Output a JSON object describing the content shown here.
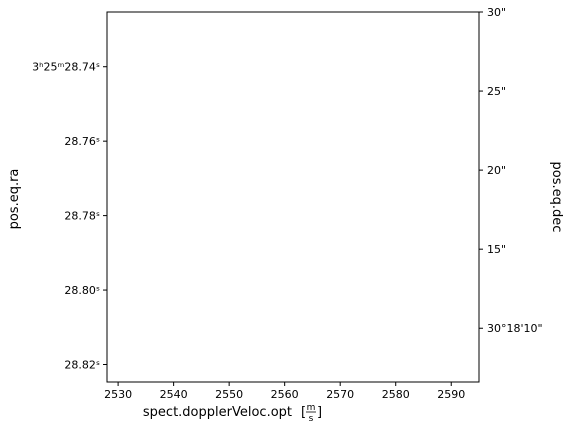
{
  "chart_data": {
    "type": "scatter",
    "title": "",
    "xlabel": "spect.dopplerVeloc.opt",
    "xlabel_unit_num": "m",
    "xlabel_unit_den": "s",
    "ylabel_left": "pos.eq.ra",
    "ylabel_right": "pos.eq.dec",
    "xlim": [
      2528,
      2595
    ],
    "x_ticks": [
      2530,
      2540,
      2550,
      2560,
      2570,
      2580,
      2590
    ],
    "x_tick_labels": [
      "2530",
      "2540",
      "2550",
      "2560",
      "2570",
      "2580",
      "2590"
    ],
    "left_ylim": [
      28.7253,
      28.8247
    ],
    "left_ticks": [
      {
        "value": 28.74,
        "label": "3ʰ25ᵐ28.74ˢ"
      },
      {
        "value": 28.76,
        "label": "28.76ˢ"
      },
      {
        "value": 28.78,
        "label": "28.78ˢ"
      },
      {
        "value": 28.8,
        "label": "28.80ˢ"
      },
      {
        "value": 28.82,
        "label": "28.82ˢ"
      }
    ],
    "right_ylim": [
      6.6,
      30
    ],
    "right_ticks": [
      {
        "value": 30,
        "label": "30\""
      },
      {
        "value": 25,
        "label": "25\""
      },
      {
        "value": 20,
        "label": "20\""
      },
      {
        "value": 15,
        "label": "15\""
      },
      {
        "value": 10,
        "label": "30°18'10\""
      }
    ],
    "series": [],
    "grid": false
  }
}
